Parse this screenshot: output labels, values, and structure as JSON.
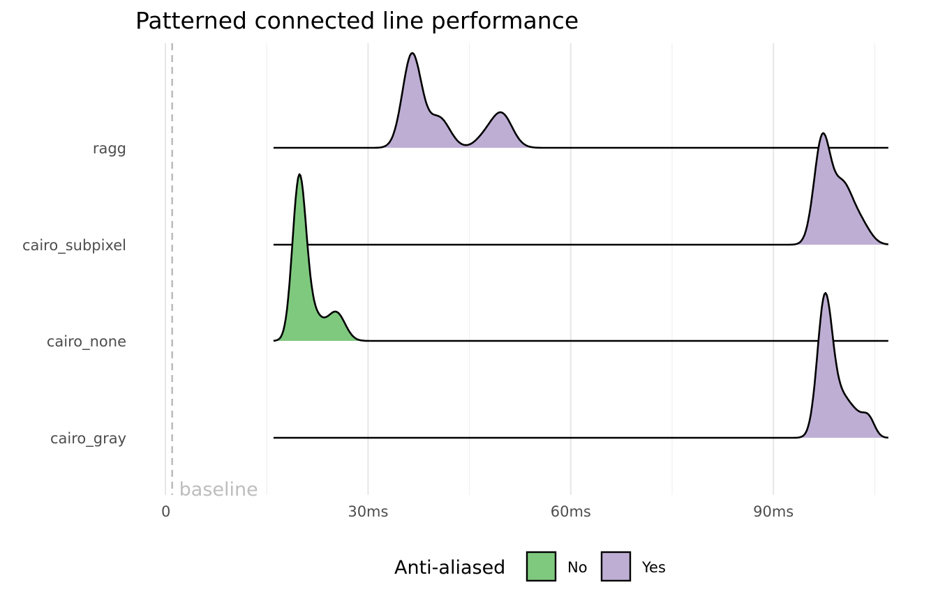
{
  "chart_data": {
    "type": "ridgeline",
    "title": "Patterned connected line performance",
    "x_unit": "ms",
    "xlim": [
      0,
      107
    ],
    "x_ticks": [
      {
        "value": 0,
        "label": "0"
      },
      {
        "value": 30,
        "label": "30ms"
      },
      {
        "value": 60,
        "label": "60ms"
      },
      {
        "value": 90,
        "label": "90ms"
      }
    ],
    "minor_grid": [
      15,
      45,
      75,
      105
    ],
    "reference_line": {
      "x": 1,
      "label": "baseline",
      "style": "dashed"
    },
    "categories": [
      "ragg",
      "cairo_subpixel",
      "cairo_none",
      "cairo_gray"
    ],
    "density_range": [
      16,
      107
    ],
    "fill_legend": {
      "title": "Anti-aliased",
      "items": [
        {
          "label": "No",
          "color": "#7FC97F"
        },
        {
          "label": "Yes",
          "color": "#BEAED4"
        }
      ]
    },
    "series": [
      {
        "name": "ragg",
        "anti_aliased": "Yes",
        "peaks": [
          {
            "center": 36.5,
            "sd": 1.4,
            "height": 1.0
          },
          {
            "center": 40.5,
            "sd": 1.6,
            "height": 0.32
          },
          {
            "center": 49.7,
            "sd": 1.6,
            "height": 0.37
          },
          {
            "center": 47.0,
            "sd": 1.3,
            "height": 0.08
          }
        ]
      },
      {
        "name": "cairo_subpixel",
        "anti_aliased": "Yes",
        "peaks": [
          {
            "center": 97.2,
            "sd": 1.2,
            "height": 1.1
          },
          {
            "center": 100.2,
            "sd": 1.5,
            "height": 0.62
          },
          {
            "center": 103.0,
            "sd": 1.4,
            "height": 0.2
          }
        ]
      },
      {
        "name": "cairo_none",
        "anti_aliased": "No",
        "peaks": [
          {
            "center": 19.8,
            "sd": 1.0,
            "height": 1.68
          },
          {
            "center": 21.8,
            "sd": 1.4,
            "height": 0.28
          },
          {
            "center": 25.3,
            "sd": 1.3,
            "height": 0.3
          }
        ]
      },
      {
        "name": "cairo_gray",
        "anti_aliased": "Yes",
        "peaks": [
          {
            "center": 97.6,
            "sd": 1.1,
            "height": 1.45
          },
          {
            "center": 100.2,
            "sd": 1.5,
            "height": 0.42
          },
          {
            "center": 104.1,
            "sd": 0.9,
            "height": 0.2
          },
          {
            "center": 102.5,
            "sd": 1.0,
            "height": 0.12
          }
        ]
      }
    ]
  }
}
